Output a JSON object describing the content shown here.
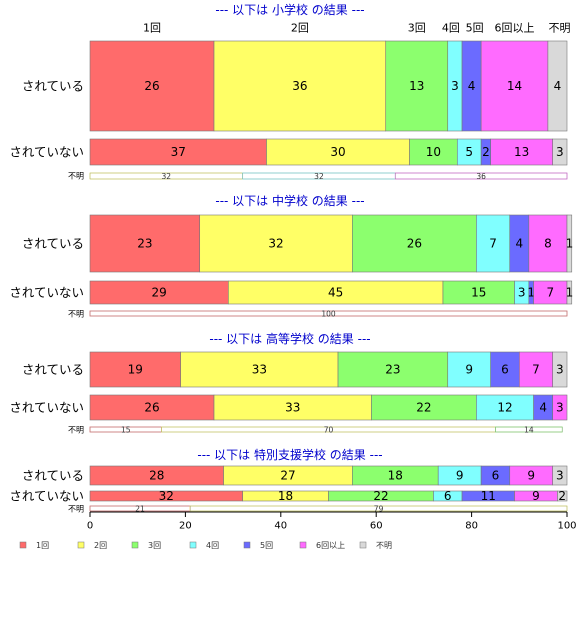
{
  "colors": [
    "#ff6b6b",
    "#ffff66",
    "#8cff6e",
    "#80ffff",
    "#6b6bff",
    "#ff6bff",
    "#d9d9d9"
  ],
  "chart_data": {
    "type": "bar",
    "orientation": "horizontal",
    "stacked": true,
    "xlim": [
      0,
      100
    ],
    "xticks": [
      "0",
      "20",
      "40",
      "60",
      "80",
      "100"
    ],
    "categories_legend": [
      "1回",
      "2回",
      "3回",
      "4回",
      "5回",
      "6回以上",
      "不明"
    ],
    "top_category_labels": [
      "1回",
      "2回",
      "3回",
      "4回",
      "5回",
      "6回以上",
      "不明"
    ],
    "unknown_label": "不明",
    "panels": [
      {
        "title": "--- 以下は 小学校 の結果 ---",
        "rows": [
          {
            "label": "されている",
            "values": [
              26,
              36,
              13,
              3,
              4,
              14,
              4
            ]
          },
          {
            "label": "されていない",
            "values": [
              37,
              30,
              10,
              5,
              2,
              13,
              3
            ]
          }
        ],
        "unknown_values": [
          32,
          32,
          36
        ],
        "unknown_colors": [
          "#ffff66",
          "#80ffff",
          "#ff6bff"
        ]
      },
      {
        "title": "--- 以下は 中学校 の結果 ---",
        "rows": [
          {
            "label": "されている",
            "values": [
              23,
              32,
              26,
              7,
              4,
              8,
              1
            ]
          },
          {
            "label": "されていない",
            "values": [
              29,
              45,
              15,
              3,
              1,
              7,
              1
            ]
          }
        ],
        "unknown_values": [
          100
        ],
        "unknown_colors": [
          "#ff6b6b"
        ]
      },
      {
        "title": "--- 以下は 高等学校 の結果 ---",
        "rows": [
          {
            "label": "されている",
            "values": [
              19,
              33,
              23,
              9,
              6,
              7,
              3
            ]
          },
          {
            "label": "されていない",
            "values": [
              26,
              33,
              22,
              12,
              4,
              3,
              0
            ]
          }
        ],
        "unknown_values": [
          15,
          70,
          14
        ],
        "unknown_colors": [
          "#ff6b6b",
          "#ffff66",
          "#8cff6e"
        ]
      },
      {
        "title": "--- 以下は 特別支援学校 の結果 ---",
        "rows": [
          {
            "label": "されている",
            "values": [
              28,
              27,
              18,
              9,
              6,
              9,
              3
            ]
          },
          {
            "label": "されていない",
            "values": [
              32,
              18,
              22,
              6,
              11,
              9,
              2
            ]
          }
        ],
        "unknown_values": [
          21,
          79
        ],
        "unknown_colors": [
          "#ff6b6b",
          "#ffff66"
        ]
      }
    ]
  }
}
